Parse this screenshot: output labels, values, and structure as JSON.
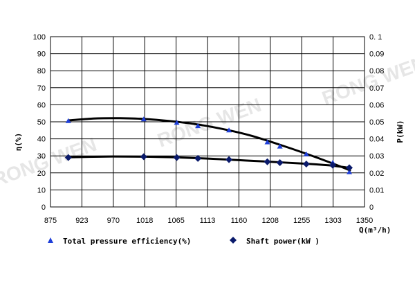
{
  "chart_data": {
    "type": "line",
    "x_axis": {
      "label": "Q(m³/h)",
      "min": 875,
      "max": 1350,
      "ticks": [
        "875",
        "923",
        "970",
        "1018",
        "1065",
        "1113",
        "1160",
        "1208",
        "1255",
        "1303",
        "1350"
      ]
    },
    "y_left": {
      "label": "η(%)",
      "min": 0,
      "max": 100,
      "ticks": [
        "0",
        "10",
        "20",
        "30",
        "40",
        "50",
        "60",
        "70",
        "80",
        "90",
        "100"
      ]
    },
    "y_right": {
      "label": "P(kW)",
      "min": 0,
      "max": 0.1,
      "ticks": [
        "0",
        "0.01",
        "0.02",
        "0.03",
        "0.04",
        "0.05",
        "0.06",
        "0.07",
        "0.08",
        "0.09",
        "0. 1"
      ]
    },
    "grid": true,
    "series": [
      {
        "name": "Total pressure efficiency(%)",
        "axis": "left",
        "marker": "triangle",
        "marker_color": "#1f3fd8",
        "points": [
          [
            902,
            50.5
          ],
          [
            1016,
            51.5
          ],
          [
            1066,
            49.5
          ],
          [
            1098,
            47.5
          ],
          [
            1145,
            45
          ],
          [
            1203,
            38
          ],
          [
            1222,
            35.5
          ],
          [
            1262,
            31
          ],
          [
            1302,
            26
          ],
          [
            1327,
            20.5
          ]
        ],
        "fit": [
          [
            902,
            50.8
          ],
          [
            940,
            51.9
          ],
          [
            980,
            52.1
          ],
          [
            1020,
            51.6
          ],
          [
            1066,
            50.0
          ],
          [
            1100,
            48.3
          ],
          [
            1145,
            45.0
          ],
          [
            1180,
            41.7
          ],
          [
            1220,
            36.8
          ],
          [
            1260,
            31.5
          ],
          [
            1300,
            25.8
          ],
          [
            1328,
            21.5
          ]
        ]
      },
      {
        "name": "Shaft power(kW )",
        "axis": "right",
        "marker": "diamond",
        "marker_color": "#0a1a6b",
        "points": [
          [
            902,
            0.029
          ],
          [
            1016,
            0.0295
          ],
          [
            1066,
            0.029
          ],
          [
            1098,
            0.0285
          ],
          [
            1145,
            0.0278
          ],
          [
            1203,
            0.0265
          ],
          [
            1222,
            0.026
          ],
          [
            1262,
            0.0252
          ],
          [
            1302,
            0.0245
          ],
          [
            1327,
            0.023
          ]
        ],
        "fit": [
          [
            902,
            0.0292
          ],
          [
            960,
            0.0296
          ],
          [
            1016,
            0.0295
          ],
          [
            1066,
            0.0291
          ],
          [
            1113,
            0.0284
          ],
          [
            1160,
            0.0275
          ],
          [
            1208,
            0.0265
          ],
          [
            1260,
            0.0254
          ],
          [
            1300,
            0.0243
          ],
          [
            1328,
            0.0229
          ]
        ]
      }
    ],
    "legend": {
      "position": "bottom"
    },
    "watermark": [
      "RONG WEN",
      "RONG WEN",
      "RONG WEN"
    ]
  }
}
